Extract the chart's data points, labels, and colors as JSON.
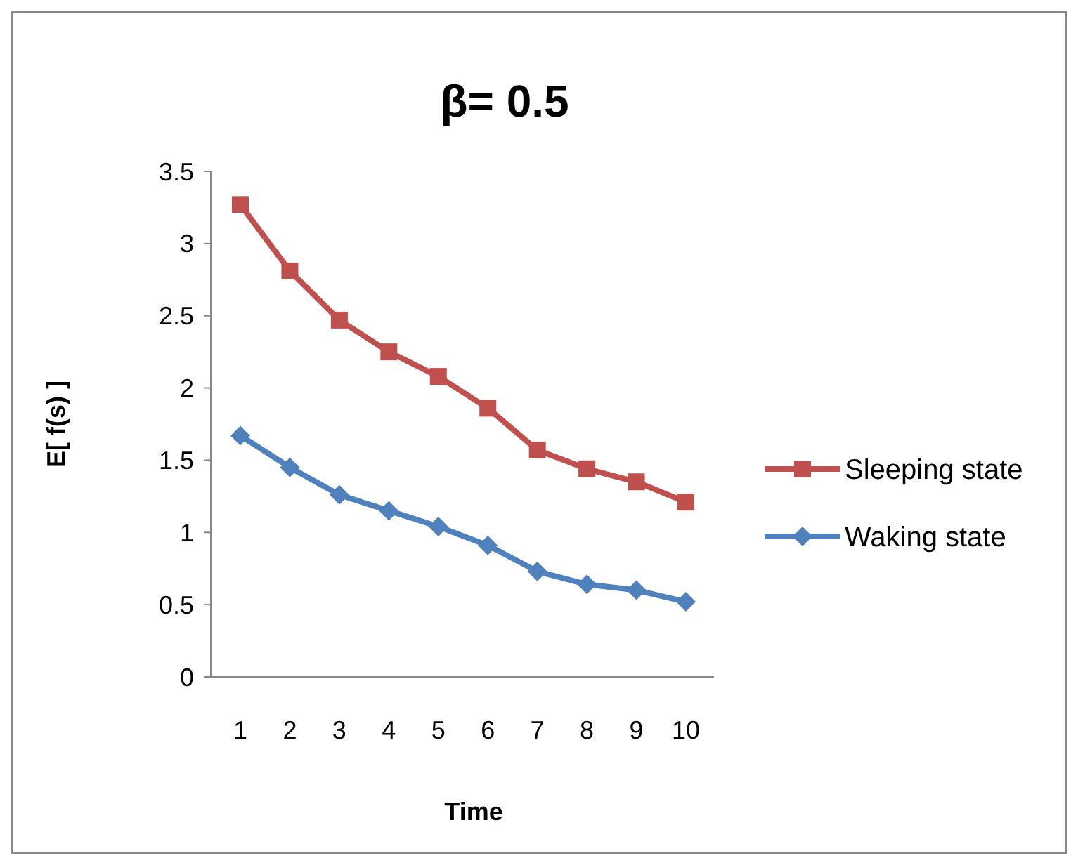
{
  "chart_data": {
    "type": "line",
    "title": "β= 0.5",
    "xlabel": "Time",
    "ylabel": "E[ f(s) ]",
    "categories": [
      "1",
      "2",
      "3",
      "4",
      "5",
      "6",
      "7",
      "8",
      "9",
      "10"
    ],
    "series": [
      {
        "name": "Sleeping state",
        "color": "#c0504d",
        "marker": "square",
        "values": [
          3.27,
          2.81,
          2.47,
          2.25,
          2.08,
          1.86,
          1.57,
          1.44,
          1.35,
          1.21
        ]
      },
      {
        "name": "Waking state",
        "color": "#4f81bd",
        "marker": "diamond",
        "values": [
          1.67,
          1.45,
          1.26,
          1.15,
          1.04,
          0.91,
          0.73,
          0.64,
          0.6,
          0.52
        ]
      }
    ],
    "ylim": [
      0,
      3.5
    ],
    "yticks": [
      0,
      0.5,
      1,
      1.5,
      2,
      2.5,
      3,
      3.5
    ],
    "grid": false,
    "legend": "right"
  }
}
